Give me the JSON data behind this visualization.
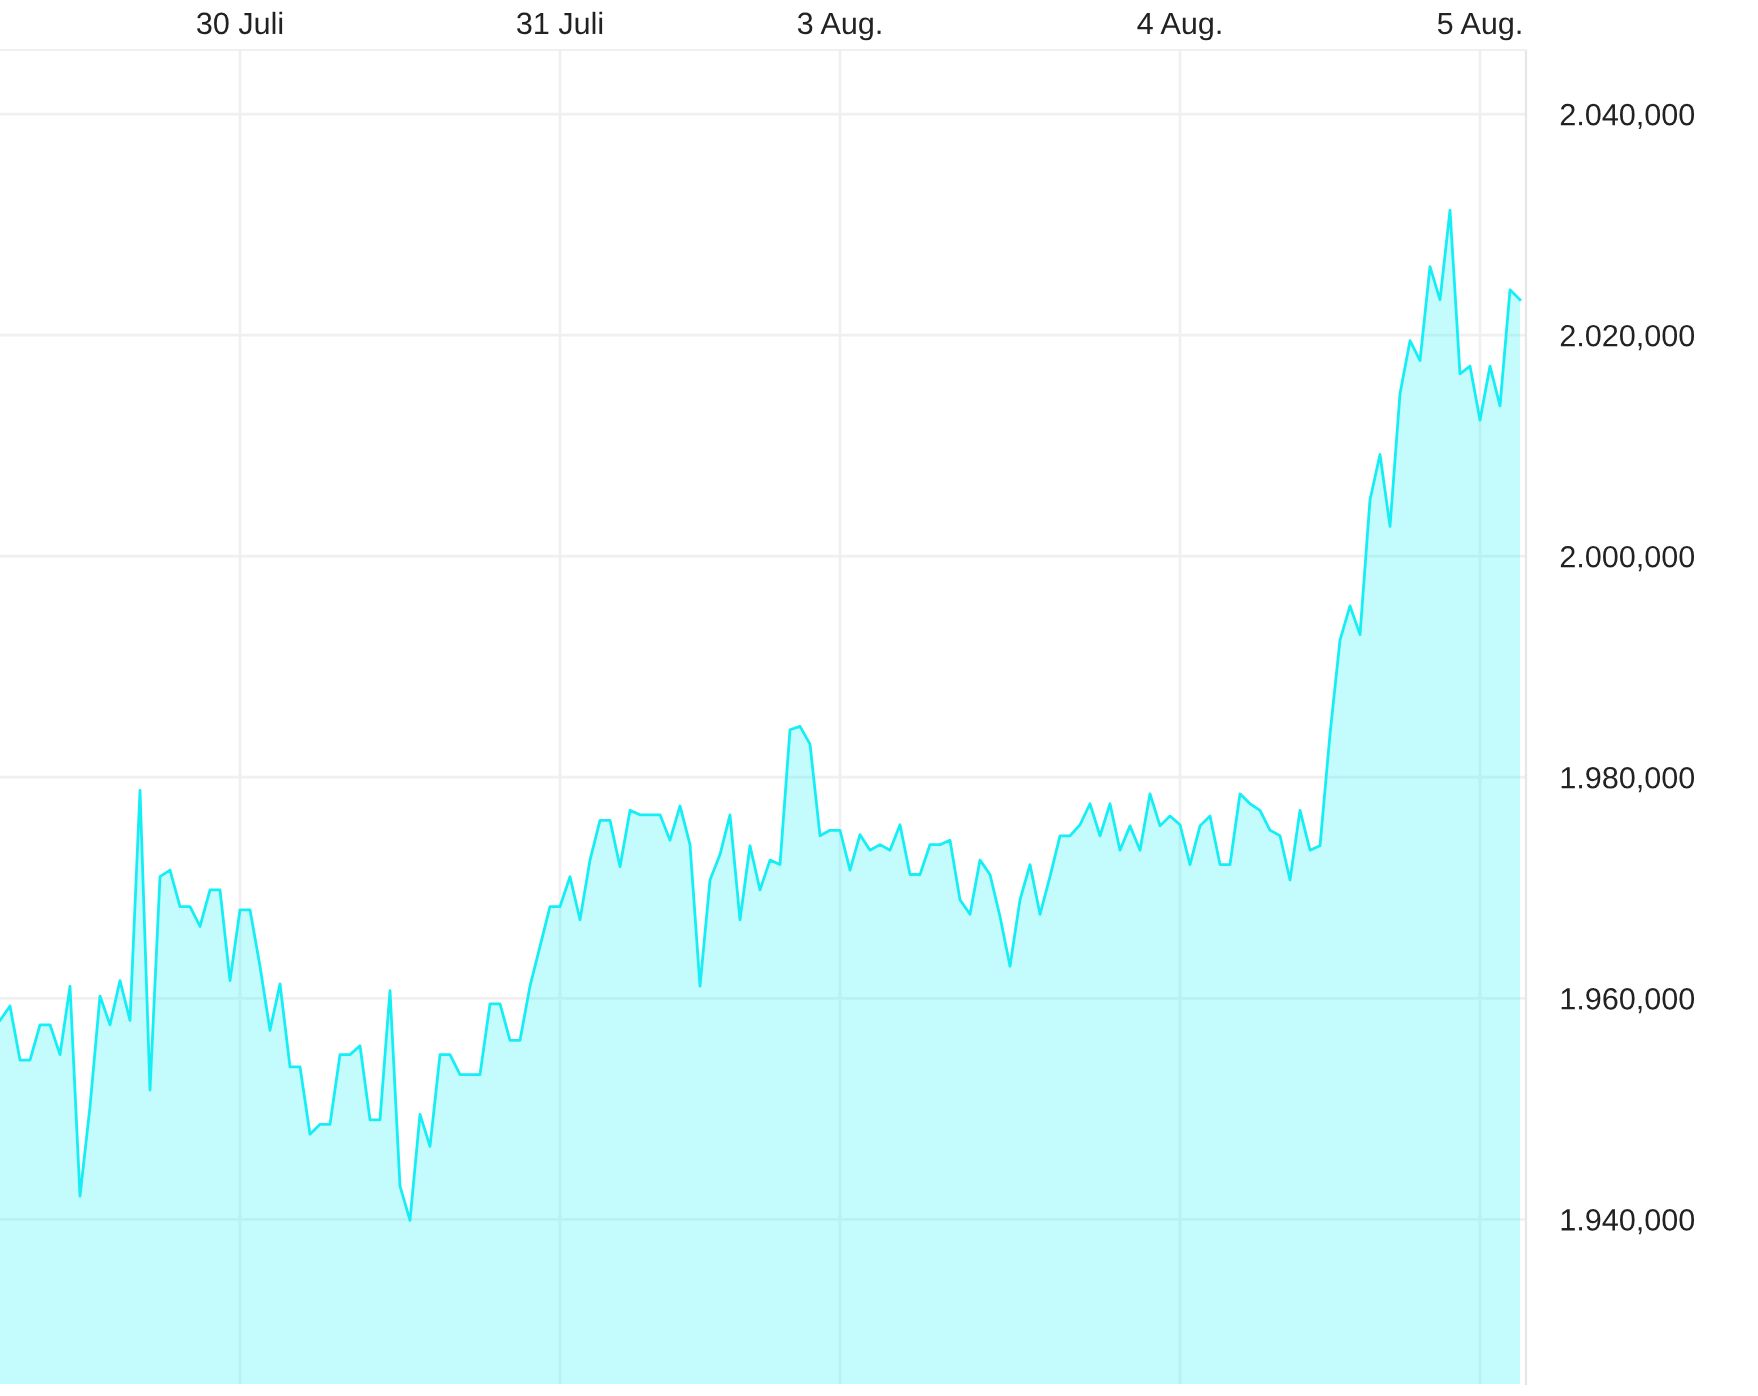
{
  "chart_data": {
    "type": "area",
    "categories": [
      null,
      null,
      null,
      null,
      null,
      null,
      null,
      null,
      null,
      null,
      null,
      null,
      null,
      null,
      null,
      null,
      null,
      null,
      null,
      null,
      null,
      null,
      null,
      null,
      "30 Juli",
      null,
      null,
      null,
      null,
      null,
      null,
      null,
      null,
      null,
      null,
      null,
      null,
      null,
      null,
      null,
      null,
      null,
      null,
      null,
      null,
      null,
      null,
      null,
      null,
      null,
      null,
      null,
      null,
      null,
      null,
      null,
      "31 Juli",
      null,
      null,
      null,
      null,
      null,
      null,
      null,
      null,
      null,
      null,
      null,
      null,
      null,
      null,
      null,
      null,
      null,
      null,
      null,
      null,
      null,
      null,
      null,
      null,
      null,
      null,
      null,
      "3 Aug.",
      null,
      null,
      null,
      null,
      null,
      null,
      null,
      null,
      null,
      null,
      null,
      null,
      null,
      null,
      null,
      null,
      null,
      null,
      null,
      null,
      null,
      null,
      null,
      null,
      null,
      null,
      null,
      null,
      null,
      null,
      null,
      null,
      null,
      "4 Aug.",
      null,
      null,
      null,
      null,
      null,
      null,
      null,
      null,
      null,
      null,
      null,
      null,
      null,
      null,
      null,
      null,
      null,
      null,
      null,
      null,
      null,
      null,
      null,
      null,
      null,
      null,
      null,
      null,
      null,
      "5 Aug.",
      null,
      null,
      null,
      null
    ],
    "series": [
      {
        "color": "#14eef4",
        "values": [
          1958.0,
          1959.3,
          1954.4,
          1954.4,
          1957.6,
          1957.6,
          1954.9,
          1961.1,
          1942.1,
          1950.2,
          1960.2,
          1957.6,
          1961.6,
          1958.0,
          1978.8,
          1951.7,
          1971.0,
          1971.6,
          1968.3,
          1968.3,
          1966.5,
          1969.8,
          1969.8,
          1961.6,
          1968.0,
          1968.0,
          1962.9,
          1957.1,
          1961.3,
          1953.8,
          1953.8,
          1947.7,
          1948.6,
          1948.6,
          1954.9,
          1954.9,
          1955.7,
          1949.0,
          1949.0,
          1960.7,
          1943.0,
          1939.9,
          1949.5,
          1946.6,
          1954.9,
          1954.9,
          1953.1,
          1953.1,
          1953.1,
          1959.5,
          1959.5,
          1956.2,
          1956.2,
          1961.1,
          1964.7,
          1968.3,
          1968.3,
          1971.0,
          1967.1,
          1972.5,
          1976.1,
          1976.1,
          1971.9,
          1977.0,
          1976.6,
          1976.6,
          1976.6,
          1974.3,
          1977.4,
          1973.9,
          1961.1,
          1970.7,
          1973.0,
          1976.6,
          1967.1,
          1973.8,
          1969.8,
          1972.5,
          1972.1,
          1984.3,
          1984.6,
          1983.0,
          1974.7,
          1975.2,
          1975.2,
          1971.6,
          1974.8,
          1973.4,
          1973.9,
          1973.4,
          1975.7,
          1971.2,
          1971.2,
          1973.9,
          1973.9,
          1974.3,
          1968.9,
          1967.6,
          1972.5,
          1971.2,
          1967.4,
          1962.9,
          1968.9,
          1972.1,
          1967.6,
          1971.0,
          1974.7,
          1974.7,
          1975.7,
          1977.6,
          1974.7,
          1977.6,
          1973.4,
          1975.6,
          1973.4,
          1978.5,
          1975.6,
          1976.5,
          1975.7,
          1972.1,
          1975.6,
          1976.5,
          1972.1,
          1972.1,
          1978.5,
          1977.6,
          1977.0,
          1975.2,
          1974.7,
          1970.7,
          1977.0,
          1973.4,
          1973.8,
          1983.9,
          1992.4,
          1995.5,
          1992.9,
          2005.1,
          2009.2,
          2002.7,
          2014.7,
          2019.5,
          2017.7,
          2026.2,
          2023.2,
          2031.3,
          2016.5,
          2017.2,
          2012.3,
          2017.2,
          2013.6,
          2024.1,
          2023.2
        ]
      }
    ],
    "ylim": [
      1925.1,
      2045.8
    ],
    "yticks": [
      {
        "value": 1940,
        "label": "1.940,000"
      },
      {
        "value": 1960,
        "label": "1.960,000"
      },
      {
        "value": 1980,
        "label": "1.980,000"
      },
      {
        "value": 2000,
        "label": "2.000,000"
      },
      {
        "value": 2020,
        "label": "2.020,000"
      },
      {
        "value": 2040,
        "label": "2.040,000"
      }
    ],
    "grid": true
  }
}
